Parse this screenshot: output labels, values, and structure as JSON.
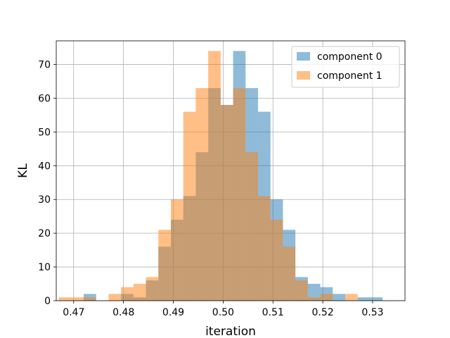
{
  "chart_data": {
    "type": "bar",
    "subtype": "overlapping-histogram",
    "title": "",
    "xlabel": "iteration",
    "ylabel": "KL",
    "xlim": [
      0.4665,
      0.5365
    ],
    "ylim": [
      0,
      77
    ],
    "grid": true,
    "legend_position": "top-right",
    "bin_width": 0.0025,
    "x_ticks": [
      {
        "value": 0.47,
        "label": "0.47"
      },
      {
        "value": 0.48,
        "label": "0.48"
      },
      {
        "value": 0.49,
        "label": "0.49"
      },
      {
        "value": 0.5,
        "label": "0.50"
      },
      {
        "value": 0.51,
        "label": "0.51"
      },
      {
        "value": 0.52,
        "label": "0.52"
      },
      {
        "value": 0.53,
        "label": "0.53"
      }
    ],
    "y_ticks": [
      {
        "value": 0,
        "label": "0"
      },
      {
        "value": 10,
        "label": "10"
      },
      {
        "value": 20,
        "label": "20"
      },
      {
        "value": 30,
        "label": "30"
      },
      {
        "value": 40,
        "label": "40"
      },
      {
        "value": 50,
        "label": "50"
      },
      {
        "value": 60,
        "label": "60"
      },
      {
        "value": 70,
        "label": "70"
      }
    ],
    "series": [
      {
        "name": "component 0",
        "color": "#1f77b4",
        "alpha": 0.5,
        "bins": [
          {
            "start": 0.472,
            "count": 2
          },
          {
            "start": 0.4795,
            "count": 2
          },
          {
            "start": 0.482,
            "count": 1
          },
          {
            "start": 0.4845,
            "count": 6
          },
          {
            "start": 0.487,
            "count": 16
          },
          {
            "start": 0.4895,
            "count": 24
          },
          {
            "start": 0.492,
            "count": 31
          },
          {
            "start": 0.4945,
            "count": 44
          },
          {
            "start": 0.497,
            "count": 63
          },
          {
            "start": 0.4995,
            "count": 58
          },
          {
            "start": 0.502,
            "count": 74
          },
          {
            "start": 0.5045,
            "count": 63
          },
          {
            "start": 0.507,
            "count": 56
          },
          {
            "start": 0.5095,
            "count": 30
          },
          {
            "start": 0.512,
            "count": 21
          },
          {
            "start": 0.5145,
            "count": 7
          },
          {
            "start": 0.517,
            "count": 5
          },
          {
            "start": 0.5195,
            "count": 4
          },
          {
            "start": 0.522,
            "count": 2
          },
          {
            "start": 0.527,
            "count": 1
          },
          {
            "start": 0.5295,
            "count": 1
          }
        ]
      },
      {
        "name": "component 1",
        "color": "#ff7f0e",
        "alpha": 0.5,
        "bins": [
          {
            "start": 0.467,
            "count": 1
          },
          {
            "start": 0.4695,
            "count": 1
          },
          {
            "start": 0.472,
            "count": 1
          },
          {
            "start": 0.477,
            "count": 2
          },
          {
            "start": 0.4795,
            "count": 4
          },
          {
            "start": 0.482,
            "count": 5
          },
          {
            "start": 0.4845,
            "count": 7
          },
          {
            "start": 0.487,
            "count": 21
          },
          {
            "start": 0.4895,
            "count": 30
          },
          {
            "start": 0.492,
            "count": 56
          },
          {
            "start": 0.4945,
            "count": 63
          },
          {
            "start": 0.497,
            "count": 74
          },
          {
            "start": 0.4995,
            "count": 58
          },
          {
            "start": 0.502,
            "count": 63
          },
          {
            "start": 0.5045,
            "count": 44
          },
          {
            "start": 0.507,
            "count": 31
          },
          {
            "start": 0.5095,
            "count": 24
          },
          {
            "start": 0.512,
            "count": 16
          },
          {
            "start": 0.5145,
            "count": 6
          },
          {
            "start": 0.517,
            "count": 1
          },
          {
            "start": 0.5195,
            "count": 2
          },
          {
            "start": 0.5245,
            "count": 2
          }
        ]
      }
    ]
  }
}
